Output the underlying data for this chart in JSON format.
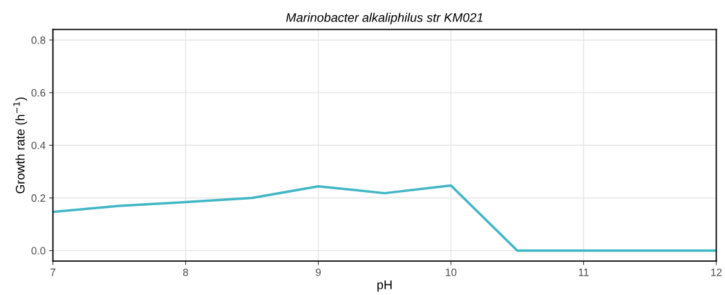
{
  "chart_data": {
    "type": "line",
    "title": "Marinobacter alkaliphilus str KM021",
    "xlabel": "pH",
    "ylabel": "Growth rate (h$^{−1}$)",
    "x": [
      7,
      7.5,
      8,
      8.5,
      9,
      9.5,
      10,
      10.5,
      11,
      11.5,
      12
    ],
    "series": [
      {
        "color": "#41b6c4",
        "values": [
          0.147,
          0.17,
          0.184,
          0.2,
          0.244,
          0.218,
          0.247,
          0,
          0,
          0,
          0
        ]
      }
    ],
    "xlim": [
      7,
      12
    ],
    "xticks": [
      7,
      8,
      9,
      10,
      11,
      12
    ],
    "ylim": [
      -0.04,
      0.84
    ],
    "yticks": [
      {
        "value": 0,
        "label": "0.0"
      },
      0.2,
      0.4,
      0.6,
      0.8
    ],
    "grid": true,
    "marker": "none",
    "line_style": "solid"
  }
}
